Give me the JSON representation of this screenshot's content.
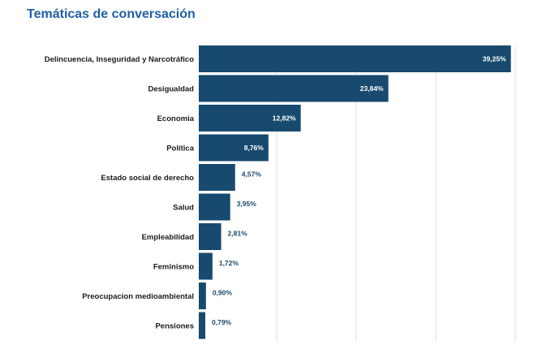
{
  "chart_data": {
    "type": "bar",
    "orientation": "horizontal",
    "title": "Temáticas de conversación",
    "categories": [
      "Delincuencia, Inseguridad y Narcotráfico",
      "Desigualdad",
      "Economia",
      "Política",
      "Estado social de derecho",
      "Salud",
      "Empleabilidad",
      "Feminismo",
      "Preocupacion medioambiental",
      "Pensiones"
    ],
    "values": [
      39.25,
      23.84,
      12.82,
      8.76,
      4.57,
      3.95,
      2.81,
      1.72,
      0.9,
      0.79
    ],
    "value_labels": [
      "39,25%",
      "23,84%",
      "12,82%",
      "8,76%",
      "4,57%",
      "3,95%",
      "2,81%",
      "1,72%",
      "0,90%",
      "0,79%"
    ],
    "xlim": [
      0,
      40
    ],
    "grid": true,
    "bar_color": "#174a6e",
    "title_color": "#1f5ea8"
  }
}
